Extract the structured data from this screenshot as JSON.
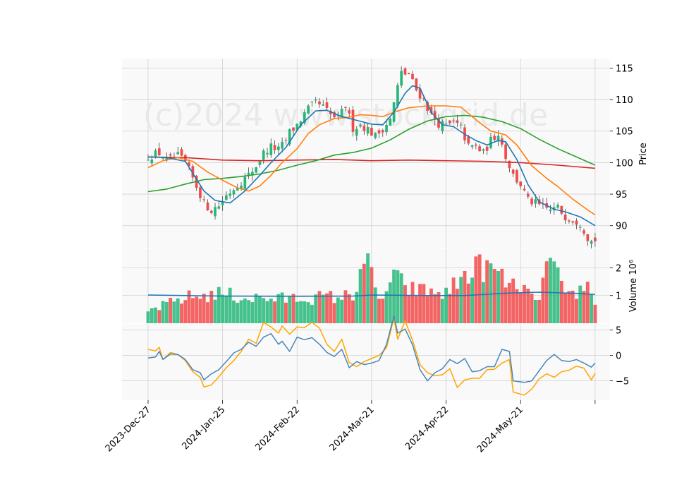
{
  "watermark": "(c)2024 www.stockgrid.de",
  "colors": {
    "up": "#26b779",
    "down": "#f24a4a",
    "ma_short": "#1f77b4",
    "ma_mid": "#ff7f0e",
    "ma_long": "#2ca02c",
    "ma_200": "#d62728",
    "vol_ma": "#1f77b4",
    "osc_fast": "#4a86b8",
    "osc_slow": "#ffa500",
    "grid": "#d0d0d0",
    "panel_bg": "#f9f9f9"
  },
  "chart_data": {
    "type": "candlestick",
    "x_ticks": [
      {
        "label": "2023-Dec-27",
        "index": 0
      },
      {
        "label": "2024-Jan-25",
        "index": 20
      },
      {
        "label": "2024-Feb-22",
        "index": 40
      },
      {
        "label": "2024-Mar-21",
        "index": 60
      },
      {
        "label": "2024-Apr-22",
        "index": 80
      },
      {
        "label": "2024-May-21",
        "index": 100
      },
      {
        "label": "",
        "index": 120
      }
    ],
    "x_range": [
      -7,
      124
    ],
    "price": {
      "ylabel": "Price",
      "ylim": [
        86.5,
        116.5
      ],
      "yticks": [
        90,
        95,
        100,
        105,
        110,
        115
      ],
      "anchors": [
        [
          0,
          101
        ],
        [
          3,
          101.5
        ],
        [
          5,
          100.3
        ],
        [
          8,
          101
        ],
        [
          10,
          100
        ],
        [
          12,
          97.5
        ],
        [
          14,
          95
        ],
        [
          15,
          93.5
        ],
        [
          17,
          92.5
        ],
        [
          19,
          93.2
        ],
        [
          21,
          94.8
        ],
        [
          24,
          96.5
        ],
        [
          27,
          98
        ],
        [
          29,
          99.5
        ],
        [
          31,
          101.5
        ],
        [
          33,
          102.5
        ],
        [
          35,
          102
        ],
        [
          37,
          103.5
        ],
        [
          38,
          104.8
        ],
        [
          40,
          106
        ],
        [
          43,
          108.5
        ],
        [
          45,
          109.5
        ],
        [
          47,
          108.8
        ],
        [
          49,
          107.5
        ],
        [
          51,
          107
        ],
        [
          53,
          109
        ],
        [
          55,
          105.5
        ],
        [
          57,
          106
        ],
        [
          59,
          105.3
        ],
        [
          61,
          104.2
        ],
        [
          62,
          104.8
        ],
        [
          65,
          106.8
        ],
        [
          67,
          112
        ],
        [
          68,
          114.2
        ],
        [
          70,
          114
        ],
        [
          72,
          111.5
        ],
        [
          74,
          110
        ],
        [
          76,
          107.5
        ],
        [
          78,
          106.2
        ],
        [
          80,
          105.8
        ],
        [
          82,
          106.3
        ],
        [
          84,
          105.5
        ],
        [
          86,
          102.5
        ],
        [
          88,
          102.5
        ],
        [
          90,
          101.5
        ],
        [
          92,
          103.5
        ],
        [
          94,
          104.8
        ],
        [
          96,
          101
        ],
        [
          98,
          98
        ],
        [
          99,
          97.2
        ],
        [
          100,
          96.5
        ],
        [
          102,
          94
        ],
        [
          104,
          93.5
        ],
        [
          106,
          92.8
        ],
        [
          108,
          92.5
        ],
        [
          110,
          92.8
        ],
        [
          112,
          91.5
        ],
        [
          114,
          91
        ],
        [
          116,
          90.5
        ],
        [
          118,
          88.2
        ],
        [
          119,
          87.5
        ],
        [
          120,
          87.8
        ]
      ],
      "ma_short": [
        [
          0,
          100.9
        ],
        [
          5,
          100.8
        ],
        [
          10,
          100.2
        ],
        [
          15,
          95.5
        ],
        [
          18,
          94
        ],
        [
          22,
          93.6
        ],
        [
          26,
          95.5
        ],
        [
          30,
          98
        ],
        [
          33,
          100
        ],
        [
          37,
          102.4
        ],
        [
          41,
          106
        ],
        [
          45,
          108.2
        ],
        [
          48,
          108.3
        ],
        [
          52,
          107.3
        ],
        [
          56,
          106.7
        ],
        [
          60,
          106.1
        ],
        [
          63,
          106
        ],
        [
          66,
          108
        ],
        [
          69,
          111
        ],
        [
          71,
          112.2
        ],
        [
          73,
          111.8
        ],
        [
          76,
          108
        ],
        [
          79,
          106
        ],
        [
          82,
          105.7
        ],
        [
          85,
          104.5
        ],
        [
          88,
          103.5
        ],
        [
          91,
          102.8
        ],
        [
          94,
          103.5
        ],
        [
          96,
          103.3
        ],
        [
          99,
          100.5
        ],
        [
          102,
          96.5
        ],
        [
          105,
          93.8
        ],
        [
          109,
          92.6
        ],
        [
          112,
          92.2
        ],
        [
          116,
          91.4
        ],
        [
          120,
          90
        ]
      ],
      "ma_mid": [
        [
          0,
          99.2
        ],
        [
          4,
          100.3
        ],
        [
          8,
          100.8
        ],
        [
          12,
          100.2
        ],
        [
          16,
          98.5
        ],
        [
          20,
          97.2
        ],
        [
          24,
          96
        ],
        [
          27,
          95.5
        ],
        [
          30,
          96.3
        ],
        [
          33,
          98
        ],
        [
          36,
          100
        ],
        [
          40,
          102.2
        ],
        [
          43,
          104.6
        ],
        [
          46,
          106
        ],
        [
          50,
          107
        ],
        [
          54,
          107.2
        ],
        [
          57,
          107.6
        ],
        [
          60,
          107.5
        ],
        [
          63,
          107.3
        ],
        [
          66,
          108
        ],
        [
          70,
          108.7
        ],
        [
          75,
          109
        ],
        [
          80,
          109
        ],
        [
          84,
          108.8
        ],
        [
          88,
          106.8
        ],
        [
          92,
          105
        ],
        [
          96,
          104.4
        ],
        [
          99,
          102.8
        ],
        [
          103,
          99.5
        ],
        [
          107,
          97.5
        ],
        [
          110,
          96.2
        ],
        [
          114,
          94.2
        ],
        [
          118,
          92.5
        ],
        [
          120,
          91.7
        ]
      ],
      "ma_long": [
        [
          0,
          95.4
        ],
        [
          5,
          95.8
        ],
        [
          10,
          96.6
        ],
        [
          15,
          97.3
        ],
        [
          20,
          97.5
        ],
        [
          25,
          97.8
        ],
        [
          30,
          98.2
        ],
        [
          35,
          98.8
        ],
        [
          40,
          99.6
        ],
        [
          45,
          100.3
        ],
        [
          50,
          101.2
        ],
        [
          55,
          101.6
        ],
        [
          60,
          102.3
        ],
        [
          65,
          103.6
        ],
        [
          70,
          105.3
        ],
        [
          75,
          106.6
        ],
        [
          80,
          107.3
        ],
        [
          85,
          107.5
        ],
        [
          90,
          107.2
        ],
        [
          95,
          106.5
        ],
        [
          100,
          105.4
        ],
        [
          105,
          103.7
        ],
        [
          110,
          102.2
        ],
        [
          115,
          100.9
        ],
        [
          120,
          99.6
        ]
      ],
      "ma_200": [
        [
          0,
          100.9
        ],
        [
          10,
          100.8
        ],
        [
          20,
          100.4
        ],
        [
          30,
          100.3
        ],
        [
          40,
          100.4
        ],
        [
          50,
          100.5
        ],
        [
          60,
          100.3
        ],
        [
          70,
          100.4
        ],
        [
          80,
          100.3
        ],
        [
          90,
          100.2
        ],
        [
          100,
          100
        ],
        [
          110,
          99.6
        ],
        [
          120,
          99.1
        ]
      ]
    },
    "volume": {
      "ylabel": "Volume  10⁶",
      "ylim": [
        0,
        2.7
      ],
      "yticks": [
        1,
        2
      ],
      "anchors": [
        [
          0,
          0.45
        ],
        [
          10,
          0.95
        ],
        [
          20,
          1.1
        ],
        [
          25,
          0.95
        ],
        [
          35,
          0.9
        ],
        [
          45,
          0.95
        ],
        [
          55,
          1.0
        ],
        [
          57,
          2.0
        ],
        [
          58,
          2.55
        ],
        [
          62,
          0.8
        ],
        [
          66,
          1.7
        ],
        [
          70,
          1.25
        ],
        [
          80,
          1.1
        ],
        [
          86,
          1.9
        ],
        [
          90,
          2.1
        ],
        [
          94,
          1.8
        ],
        [
          98,
          1.3
        ],
        [
          100,
          1.45
        ],
        [
          104,
          0.7
        ],
        [
          108,
          2.4
        ],
        [
          112,
          0.9
        ],
        [
          118,
          1.4
        ],
        [
          120,
          0.9
        ]
      ],
      "ma": [
        [
          0,
          1.02
        ],
        [
          20,
          0.98
        ],
        [
          40,
          0.97
        ],
        [
          55,
          0.98
        ],
        [
          60,
          1.02
        ],
        [
          75,
          1.0
        ],
        [
          85,
          1.0
        ],
        [
          95,
          1.08
        ],
        [
          105,
          1.12
        ],
        [
          115,
          1.08
        ],
        [
          120,
          1.04
        ]
      ]
    },
    "oscillator": {
      "ylim": [
        -8.8,
        6.2
      ],
      "yticks": [
        -5,
        0,
        5
      ],
      "fast": [
        [
          0,
          -0.5
        ],
        [
          2,
          -0.3
        ],
        [
          3,
          0.8
        ],
        [
          4,
          -0.8
        ],
        [
          6,
          0.3
        ],
        [
          8,
          0.2
        ],
        [
          10,
          -0.8
        ],
        [
          12,
          -2.8
        ],
        [
          14,
          -3.4
        ],
        [
          15,
          -4.8
        ],
        [
          17,
          -3.6
        ],
        [
          19,
          -2.8
        ],
        [
          21,
          -1.2
        ],
        [
          23,
          0.5
        ],
        [
          25,
          1.2
        ],
        [
          27,
          2.6
        ],
        [
          29,
          1.8
        ],
        [
          31,
          3.6
        ],
        [
          33,
          4.3
        ],
        [
          35,
          2.2
        ],
        [
          36,
          2.8
        ],
        [
          38,
          0.8
        ],
        [
          40,
          3.6
        ],
        [
          42,
          3.1
        ],
        [
          44,
          3.5
        ],
        [
          46,
          2.2
        ],
        [
          48,
          0.6
        ],
        [
          50,
          -0.2
        ],
        [
          52,
          1.2
        ],
        [
          54,
          -2.4
        ],
        [
          56,
          -1.2
        ],
        [
          58,
          -1.8
        ],
        [
          60,
          -1.5
        ],
        [
          62,
          -1.0
        ],
        [
          64,
          2.2
        ],
        [
          66,
          7.8
        ],
        [
          67,
          4.4
        ],
        [
          69,
          5.2
        ],
        [
          71,
          2.1
        ],
        [
          73,
          -2.8
        ],
        [
          75,
          -5.0
        ],
        [
          77,
          -3.4
        ],
        [
          79,
          -2.6
        ],
        [
          81,
          -0.8
        ],
        [
          83,
          -1.6
        ],
        [
          85,
          -0.6
        ],
        [
          87,
          -3.2
        ],
        [
          89,
          -3.0
        ],
        [
          91,
          -2.2
        ],
        [
          93,
          -2.2
        ],
        [
          95,
          1.2
        ],
        [
          97,
          0.8
        ],
        [
          98,
          -5.0
        ],
        [
          101,
          -5.3
        ],
        [
          103,
          -5.0
        ],
        [
          105,
          -3.0
        ],
        [
          107,
          -1.0
        ],
        [
          109,
          0.2
        ],
        [
          111,
          -1.0
        ],
        [
          113,
          -1.2
        ],
        [
          115,
          -0.8
        ],
        [
          117,
          -1.5
        ],
        [
          119,
          -2.3
        ],
        [
          120,
          -1.5
        ]
      ],
      "slow": [
        [
          0,
          1.2
        ],
        [
          2,
          0.9
        ],
        [
          3,
          1.6
        ],
        [
          4,
          -0.8
        ],
        [
          6,
          0.6
        ],
        [
          8,
          0.2
        ],
        [
          10,
          -1.0
        ],
        [
          12,
          -3.2
        ],
        [
          14,
          -4.3
        ],
        [
          15,
          -6.2
        ],
        [
          17,
          -5.8
        ],
        [
          19,
          -4.2
        ],
        [
          21,
          -2.4
        ],
        [
          23,
          -1.0
        ],
        [
          25,
          0.8
        ],
        [
          27,
          3.2
        ],
        [
          29,
          2.4
        ],
        [
          31,
          6.5
        ],
        [
          33,
          5.6
        ],
        [
          35,
          4.4
        ],
        [
          36,
          5.8
        ],
        [
          38,
          4.2
        ],
        [
          40,
          5.6
        ],
        [
          42,
          5.5
        ],
        [
          44,
          6.5
        ],
        [
          46,
          5.4
        ],
        [
          48,
          2.2
        ],
        [
          50,
          0.8
        ],
        [
          52,
          3.2
        ],
        [
          54,
          -1.4
        ],
        [
          56,
          -2.2
        ],
        [
          58,
          -1.2
        ],
        [
          60,
          -0.6
        ],
        [
          62,
          0.0
        ],
        [
          64,
          1.5
        ],
        [
          66,
          7.4
        ],
        [
          67,
          3.2
        ],
        [
          69,
          6.8
        ],
        [
          71,
          3.0
        ],
        [
          73,
          -1.8
        ],
        [
          75,
          -3.4
        ],
        [
          77,
          -4.0
        ],
        [
          79,
          -3.8
        ],
        [
          81,
          -2.6
        ],
        [
          83,
          -6.3
        ],
        [
          85,
          -4.8
        ],
        [
          87,
          -4.5
        ],
        [
          89,
          -4.5
        ],
        [
          91,
          -2.8
        ],
        [
          93,
          -2.7
        ],
        [
          95,
          -1.5
        ],
        [
          97,
          -0.8
        ],
        [
          98,
          -7.2
        ],
        [
          101,
          -7.8
        ],
        [
          103,
          -6.6
        ],
        [
          105,
          -4.6
        ],
        [
          107,
          -3.6
        ],
        [
          109,
          -4.3
        ],
        [
          111,
          -3.2
        ],
        [
          113,
          -2.9
        ],
        [
          115,
          -2.1
        ],
        [
          117,
          -2.5
        ],
        [
          119,
          -4.8
        ],
        [
          120,
          -3.5
        ]
      ]
    }
  }
}
